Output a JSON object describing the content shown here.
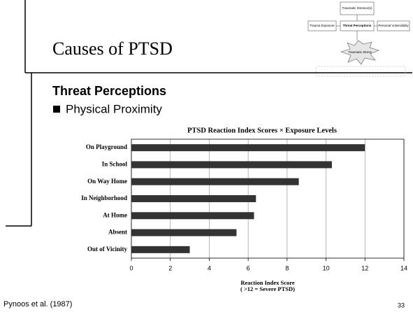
{
  "slide": {
    "title": "Causes of PTSD",
    "heading": "Threat Perceptions",
    "bullet": "Physical Proximity",
    "citation": "Pynoos et al. (1987)",
    "page_number": "33"
  },
  "diagram": {
    "nodes": [
      {
        "label": "Traumatic Stressor(s)"
      },
      {
        "label": "Trauma Exposure"
      },
      {
        "label": "Threat Perceptions"
      },
      {
        "label": "Personal Vulnerability"
      },
      {
        "label": "Traumatic Stress"
      }
    ]
  },
  "chart_data": {
    "type": "bar",
    "orientation": "horizontal",
    "title": "PTSD Reaction Index Scores × Exposure Levels",
    "categories": [
      "On Playground",
      "In School",
      "On Way Home",
      "In Neighborhood",
      "At Home",
      "Absent",
      "Out of Vicinity"
    ],
    "values": [
      12,
      10.3,
      8.6,
      6.4,
      6.3,
      5.4,
      3.0
    ],
    "color": "#333333",
    "xlim": [
      0,
      14
    ],
    "xticks": [
      0,
      2,
      4,
      6,
      8,
      10,
      12,
      14
    ],
    "grid": true,
    "xlabel": "Reaction Index Score",
    "xlabel_note": "( >12 = Severe PTSD)"
  }
}
